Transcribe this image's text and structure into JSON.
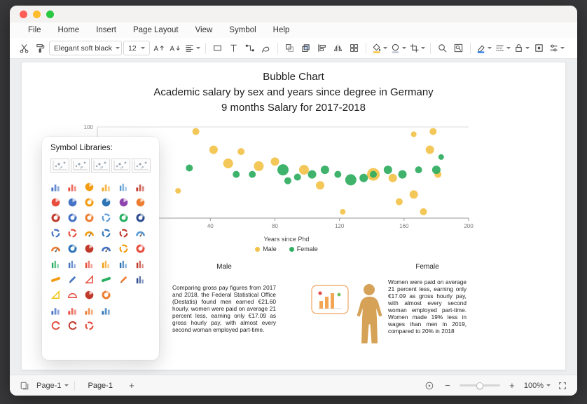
{
  "menubar": {
    "items": [
      "File",
      "Home",
      "Insert",
      "Page Layout",
      "View",
      "Symbol",
      "Help"
    ]
  },
  "toolbar": {
    "font_family": "Elegant soft black",
    "font_size": "12",
    "items": [
      {
        "type": "icon",
        "name": "cut"
      },
      {
        "type": "icon",
        "name": "format-painter"
      },
      {
        "type": "font-select"
      },
      {
        "type": "size-select"
      },
      {
        "type": "icon",
        "name": "increase-font"
      },
      {
        "type": "icon",
        "name": "decrease-font"
      },
      {
        "type": "icon",
        "name": "text-align",
        "dropdown": true
      },
      {
        "type": "divider"
      },
      {
        "type": "icon",
        "name": "rectangle-tool"
      },
      {
        "type": "icon",
        "name": "text-tool"
      },
      {
        "type": "icon",
        "name": "connector-tool"
      },
      {
        "type": "icon",
        "name": "pen-tool"
      },
      {
        "type": "divider"
      },
      {
        "type": "icon",
        "name": "group"
      },
      {
        "type": "icon",
        "name": "bring-forward"
      },
      {
        "type": "icon",
        "name": "align-objects"
      },
      {
        "type": "icon",
        "name": "flip"
      },
      {
        "type": "icon",
        "name": "layout"
      },
      {
        "type": "divider"
      },
      {
        "type": "icon",
        "name": "fill-color",
        "dropdown": true
      },
      {
        "type": "icon",
        "name": "shape-style",
        "dropdown": true
      },
      {
        "type": "icon",
        "name": "crop",
        "dropdown": true
      },
      {
        "type": "divider"
      },
      {
        "type": "icon",
        "name": "zoom"
      },
      {
        "type": "icon",
        "name": "find-replace"
      },
      {
        "type": "divider"
      },
      {
        "type": "icon",
        "name": "highlighter",
        "dropdown": true
      },
      {
        "type": "icon",
        "name": "line-style",
        "dropdown": true
      },
      {
        "type": "icon",
        "name": "lock",
        "dropdown": true
      },
      {
        "type": "icon",
        "name": "insert-object"
      },
      {
        "type": "icon",
        "name": "more-settings",
        "dropdown": true
      }
    ]
  },
  "symbol_panel": {
    "title": "Symbol Libraries:",
    "thumbnails": [
      "scatter",
      "scatter",
      "scatter",
      "scatter",
      "scatter"
    ],
    "grid": [
      [
        {
          "t": "bars",
          "c": "#4472C4"
        },
        {
          "t": "bars",
          "c": "#E74C3C"
        },
        {
          "t": "pie",
          "c": "#F39C12"
        },
        {
          "t": "bars",
          "c": "#F5A623"
        },
        {
          "t": "cols",
          "c": "#5B9BD5"
        },
        {
          "t": "bars",
          "c": "#C0392B"
        }
      ],
      [
        {
          "t": "pie",
          "c": "#E74C3C"
        },
        {
          "t": "pie",
          "c": "#4472C4"
        },
        {
          "t": "donut",
          "c": "#F39C12"
        },
        {
          "t": "pie",
          "c": "#2E75B6"
        },
        {
          "t": "pie",
          "c": "#8E44AD"
        },
        {
          "t": "pie",
          "c": "#ED7D31"
        }
      ],
      [
        {
          "t": "donut",
          "c": "#C0392B"
        },
        {
          "t": "donut",
          "c": "#4472C4"
        },
        {
          "t": "donut",
          "c": "#ED7D31"
        },
        {
          "t": "ring",
          "c": "#5B9BD5"
        },
        {
          "t": "donut",
          "c": "#27AE60"
        },
        {
          "t": "donut",
          "c": "#2C4B8F"
        }
      ],
      [
        {
          "t": "ring",
          "c": "#4472C4"
        },
        {
          "t": "ring",
          "c": "#E74C3C"
        },
        {
          "t": "gauge",
          "c": "#F39C12"
        },
        {
          "t": "ring",
          "c": "#2E75B6"
        },
        {
          "t": "ring",
          "c": "#C0392B"
        },
        {
          "t": "gauge",
          "c": "#5B9BD5"
        }
      ],
      [
        {
          "t": "gauge",
          "c": "#ED7D31"
        },
        {
          "t": "donut",
          "c": "#2E75B6"
        },
        {
          "t": "pie",
          "c": "#C0392B"
        },
        {
          "t": "gauge",
          "c": "#4472C4"
        },
        {
          "t": "ring",
          "c": "#F39C12"
        },
        {
          "t": "donut",
          "c": "#E74C3C"
        }
      ],
      [
        {
          "t": "cols",
          "c": "#27AE60"
        },
        {
          "t": "cols",
          "c": "#4472C4"
        },
        {
          "t": "cols",
          "c": "#E74C3C"
        },
        {
          "t": "cols",
          "c": "#F39C12"
        },
        {
          "t": "cols",
          "c": "#2E75B6"
        },
        {
          "t": "cols",
          "c": "#C0392B"
        }
      ],
      [
        {
          "t": "ruler",
          "c": "#F39C12"
        },
        {
          "t": "pencil",
          "c": "#4472C4"
        },
        {
          "t": "triangle",
          "c": "#E74C3C"
        },
        {
          "t": "ruler",
          "c": "#27AE60"
        },
        {
          "t": "pencil",
          "c": "#ED7D31"
        },
        {
          "t": "cols",
          "c": "#2C4B8F"
        }
      ],
      [
        {
          "t": "triangle",
          "c": "#F1C40F"
        },
        {
          "t": "protractor",
          "c": "#E74C3C"
        },
        {
          "t": "pie",
          "c": "#C0392B"
        },
        {
          "t": "donut",
          "c": "#ED7D31"
        }
      ],
      [
        {
          "t": "bars",
          "c": "#4472C4"
        },
        {
          "t": "bars",
          "c": "#E74C3C"
        },
        {
          "t": "bars",
          "c": "#ED7D31"
        },
        {
          "t": "bars",
          "c": "#2E75B6"
        }
      ],
      [
        {
          "t": "arrow",
          "c": "#E74C3C"
        },
        {
          "t": "arrow",
          "c": "#C0392B"
        },
        {
          "t": "ring",
          "c": "#E74C3C"
        }
      ]
    ]
  },
  "document": {
    "male_header": "Male",
    "female_header": "Female",
    "male_text": "Comparing gross pay figures from 2017 and 2018, the Federal Statistical Office (Destatis) found men earned €21.60 hourly. women were paid on average 21 percent less, earning only €17.09 as gross hourly pay, with almost every second woman employed part-time.",
    "female_text": "Women were paid on average 21 percent less, earning only €17.09 as gross hourly pay, with almost every second woman employed part-time. Women made 19% less in wages than men in 2019, compared to 20% in 2018"
  },
  "chart_data": {
    "type": "bubble",
    "title": "Bubble Chart",
    "subtitle": "Academic salary by sex and years since degree in Germany",
    "subtitle2": "9 months Salary for 2017-2018",
    "xlabel": "Years since Phd",
    "x_ticks": [
      40,
      80,
      120,
      160,
      200
    ],
    "xlim": [
      -30,
      200
    ],
    "ylim": [
      0,
      100
    ],
    "y_top_label": "100",
    "grid": "top-line-only",
    "legend_position": "bottom",
    "series": [
      {
        "name": "Male",
        "color": "#F2C24A",
        "points": [
          [
            31,
            95,
            5
          ],
          [
            42,
            75,
            6
          ],
          [
            20,
            30,
            4
          ],
          [
            51,
            60,
            7
          ],
          [
            59,
            73,
            5
          ],
          [
            70,
            57,
            7
          ],
          [
            80,
            62,
            6
          ],
          [
            98,
            53,
            7
          ],
          [
            108,
            36,
            6
          ],
          [
            122,
            7,
            4
          ],
          [
            141,
            48,
            9
          ],
          [
            153,
            44,
            6
          ],
          [
            157,
            18,
            5
          ],
          [
            166,
            26,
            6
          ],
          [
            172,
            7,
            5
          ],
          [
            166,
            92,
            4
          ],
          [
            176,
            75,
            6
          ],
          [
            178,
            95,
            5
          ],
          [
            181,
            48,
            5
          ]
        ]
      },
      {
        "name": "Female",
        "color": "#2FAD60",
        "points": [
          [
            27,
            55,
            5
          ],
          [
            56,
            48,
            5
          ],
          [
            66,
            48,
            5
          ],
          [
            85,
            53,
            8
          ],
          [
            88,
            41,
            5
          ],
          [
            94,
            45,
            5
          ],
          [
            103,
            48,
            6
          ],
          [
            111,
            53,
            6
          ],
          [
            119,
            48,
            5
          ],
          [
            127,
            42,
            8
          ],
          [
            135,
            44,
            6
          ],
          [
            141,
            48,
            5
          ],
          [
            150,
            53,
            6
          ],
          [
            159,
            48,
            6
          ],
          [
            169,
            53,
            5
          ],
          [
            180,
            53,
            6
          ],
          [
            183,
            67,
            4
          ]
        ]
      }
    ]
  },
  "colors": {
    "fill_swatch": "#F6C12B",
    "highlight_swatch": "#2F7EF0",
    "person_figure": "#D5A258",
    "mini_chart_border": "#F0B27A",
    "mini_chart_bar": "#F2A654",
    "mini_chart_dot": "#E05252",
    "mini_chart_green": "#6FBF5A"
  },
  "statusbar": {
    "page_selector": "Page-1",
    "active_tab": "Page-1",
    "add_page_label": "+",
    "zoom_out_label": "−",
    "zoom_in_label": "+",
    "zoom_level": "100%"
  }
}
